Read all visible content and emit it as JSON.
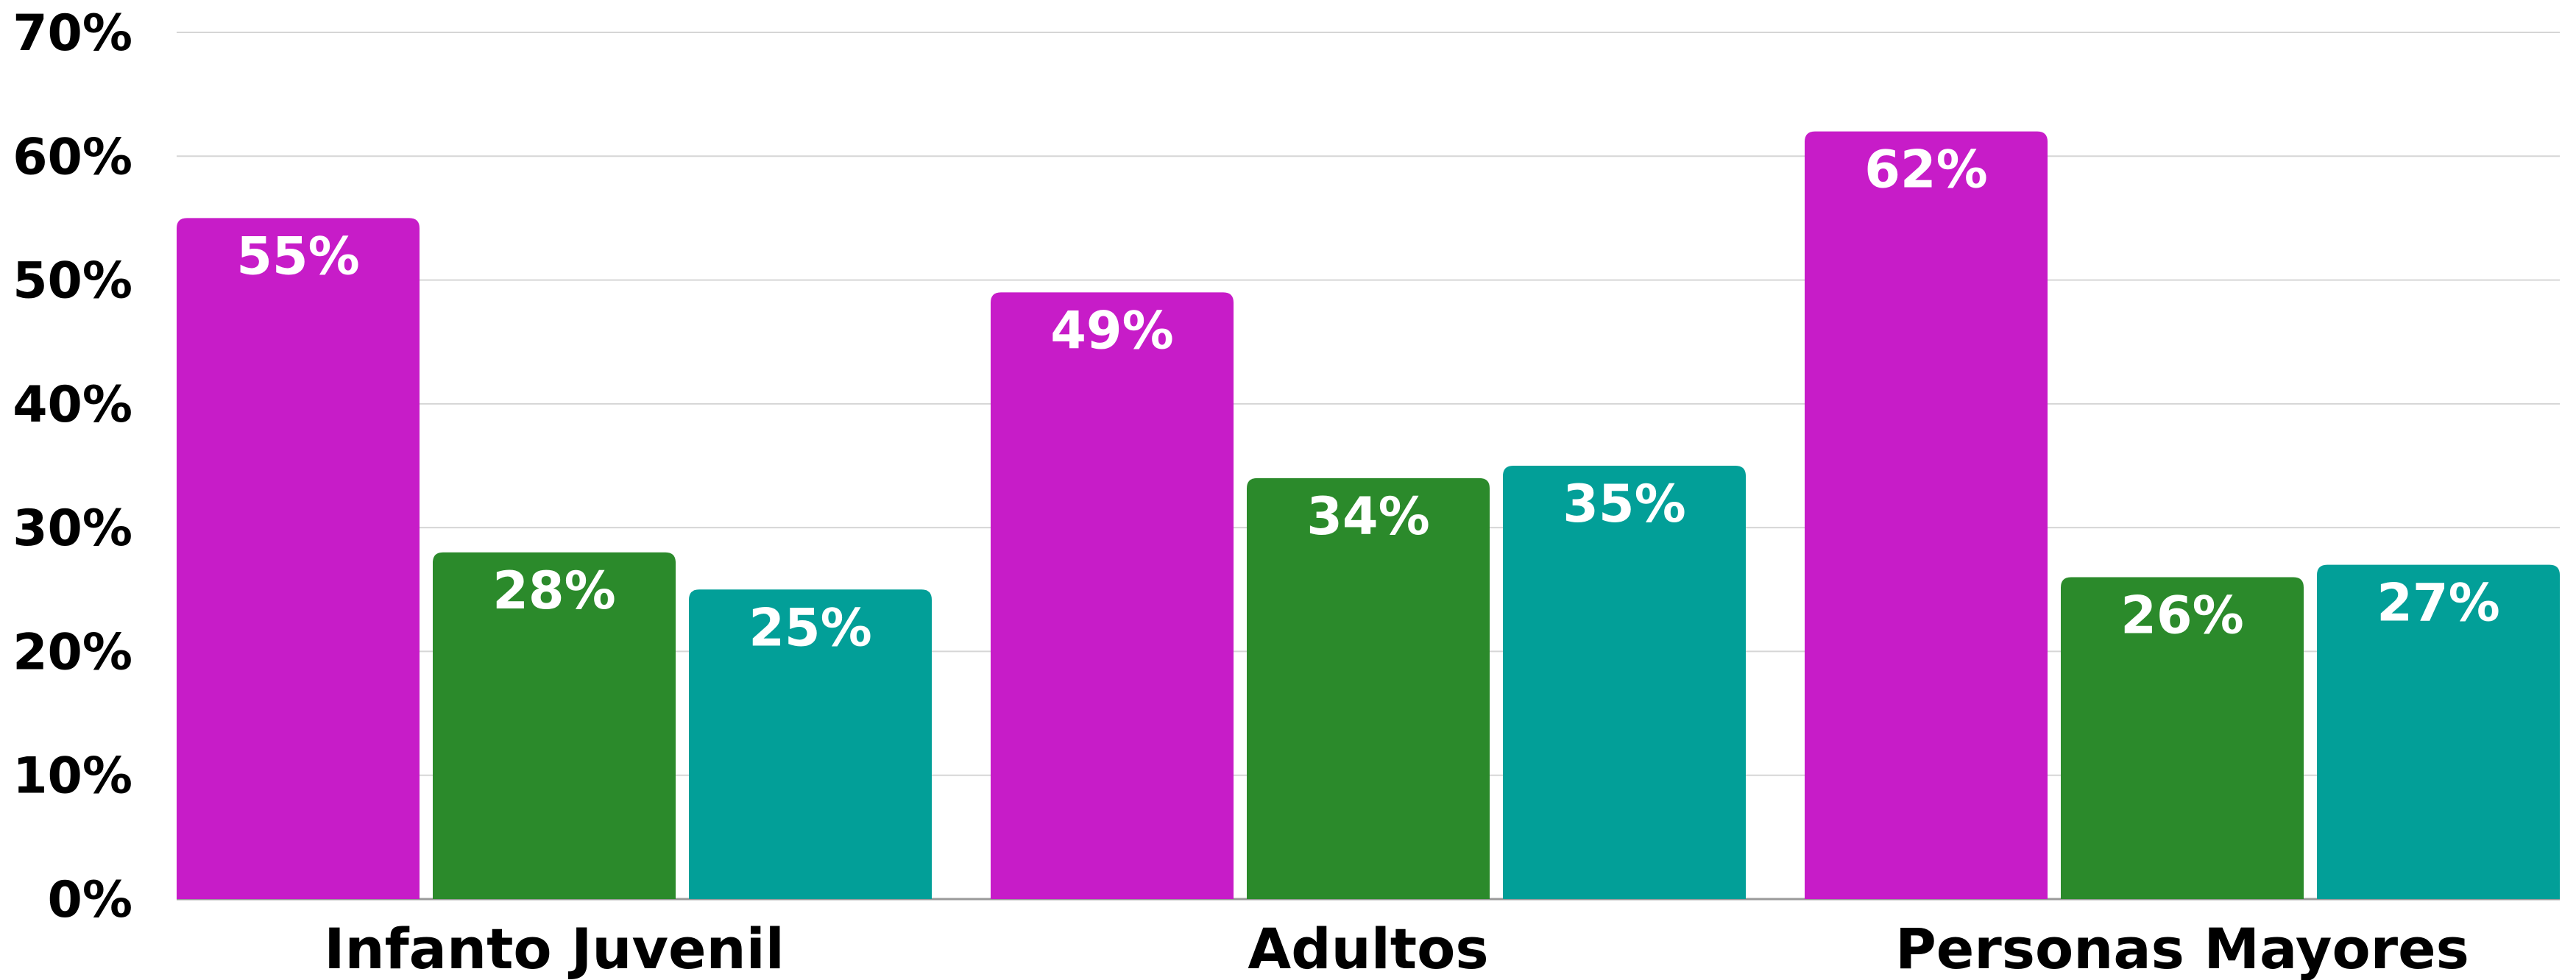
{
  "colors": {
    "series": [
      "#c71cc8",
      "#2b8a2b",
      "#029f98"
    ],
    "grid": "#d6d6d6",
    "bar_label": "#ffffff",
    "axis_text": "#000000"
  },
  "chart_data": {
    "type": "bar",
    "categories": [
      "Infanto Juvenil",
      "Adultos",
      "Personas Mayores"
    ],
    "series": [
      {
        "values": [
          55,
          49,
          62
        ]
      },
      {
        "values": [
          28,
          34,
          26
        ]
      },
      {
        "values": [
          25,
          35,
          27
        ]
      }
    ],
    "data_labels": [
      [
        "55%",
        "49%",
        "62%"
      ],
      [
        "28%",
        "34%",
        "26%"
      ],
      [
        "25%",
        "35%",
        "27%"
      ]
    ],
    "y_ticks": [
      "0%",
      "10%",
      "20%",
      "30%",
      "40%",
      "50%",
      "60%",
      "70%"
    ],
    "ylim": [
      0,
      70
    ],
    "grid": true,
    "legend": "none",
    "title": "",
    "xlabel": "",
    "ylabel": ""
  }
}
